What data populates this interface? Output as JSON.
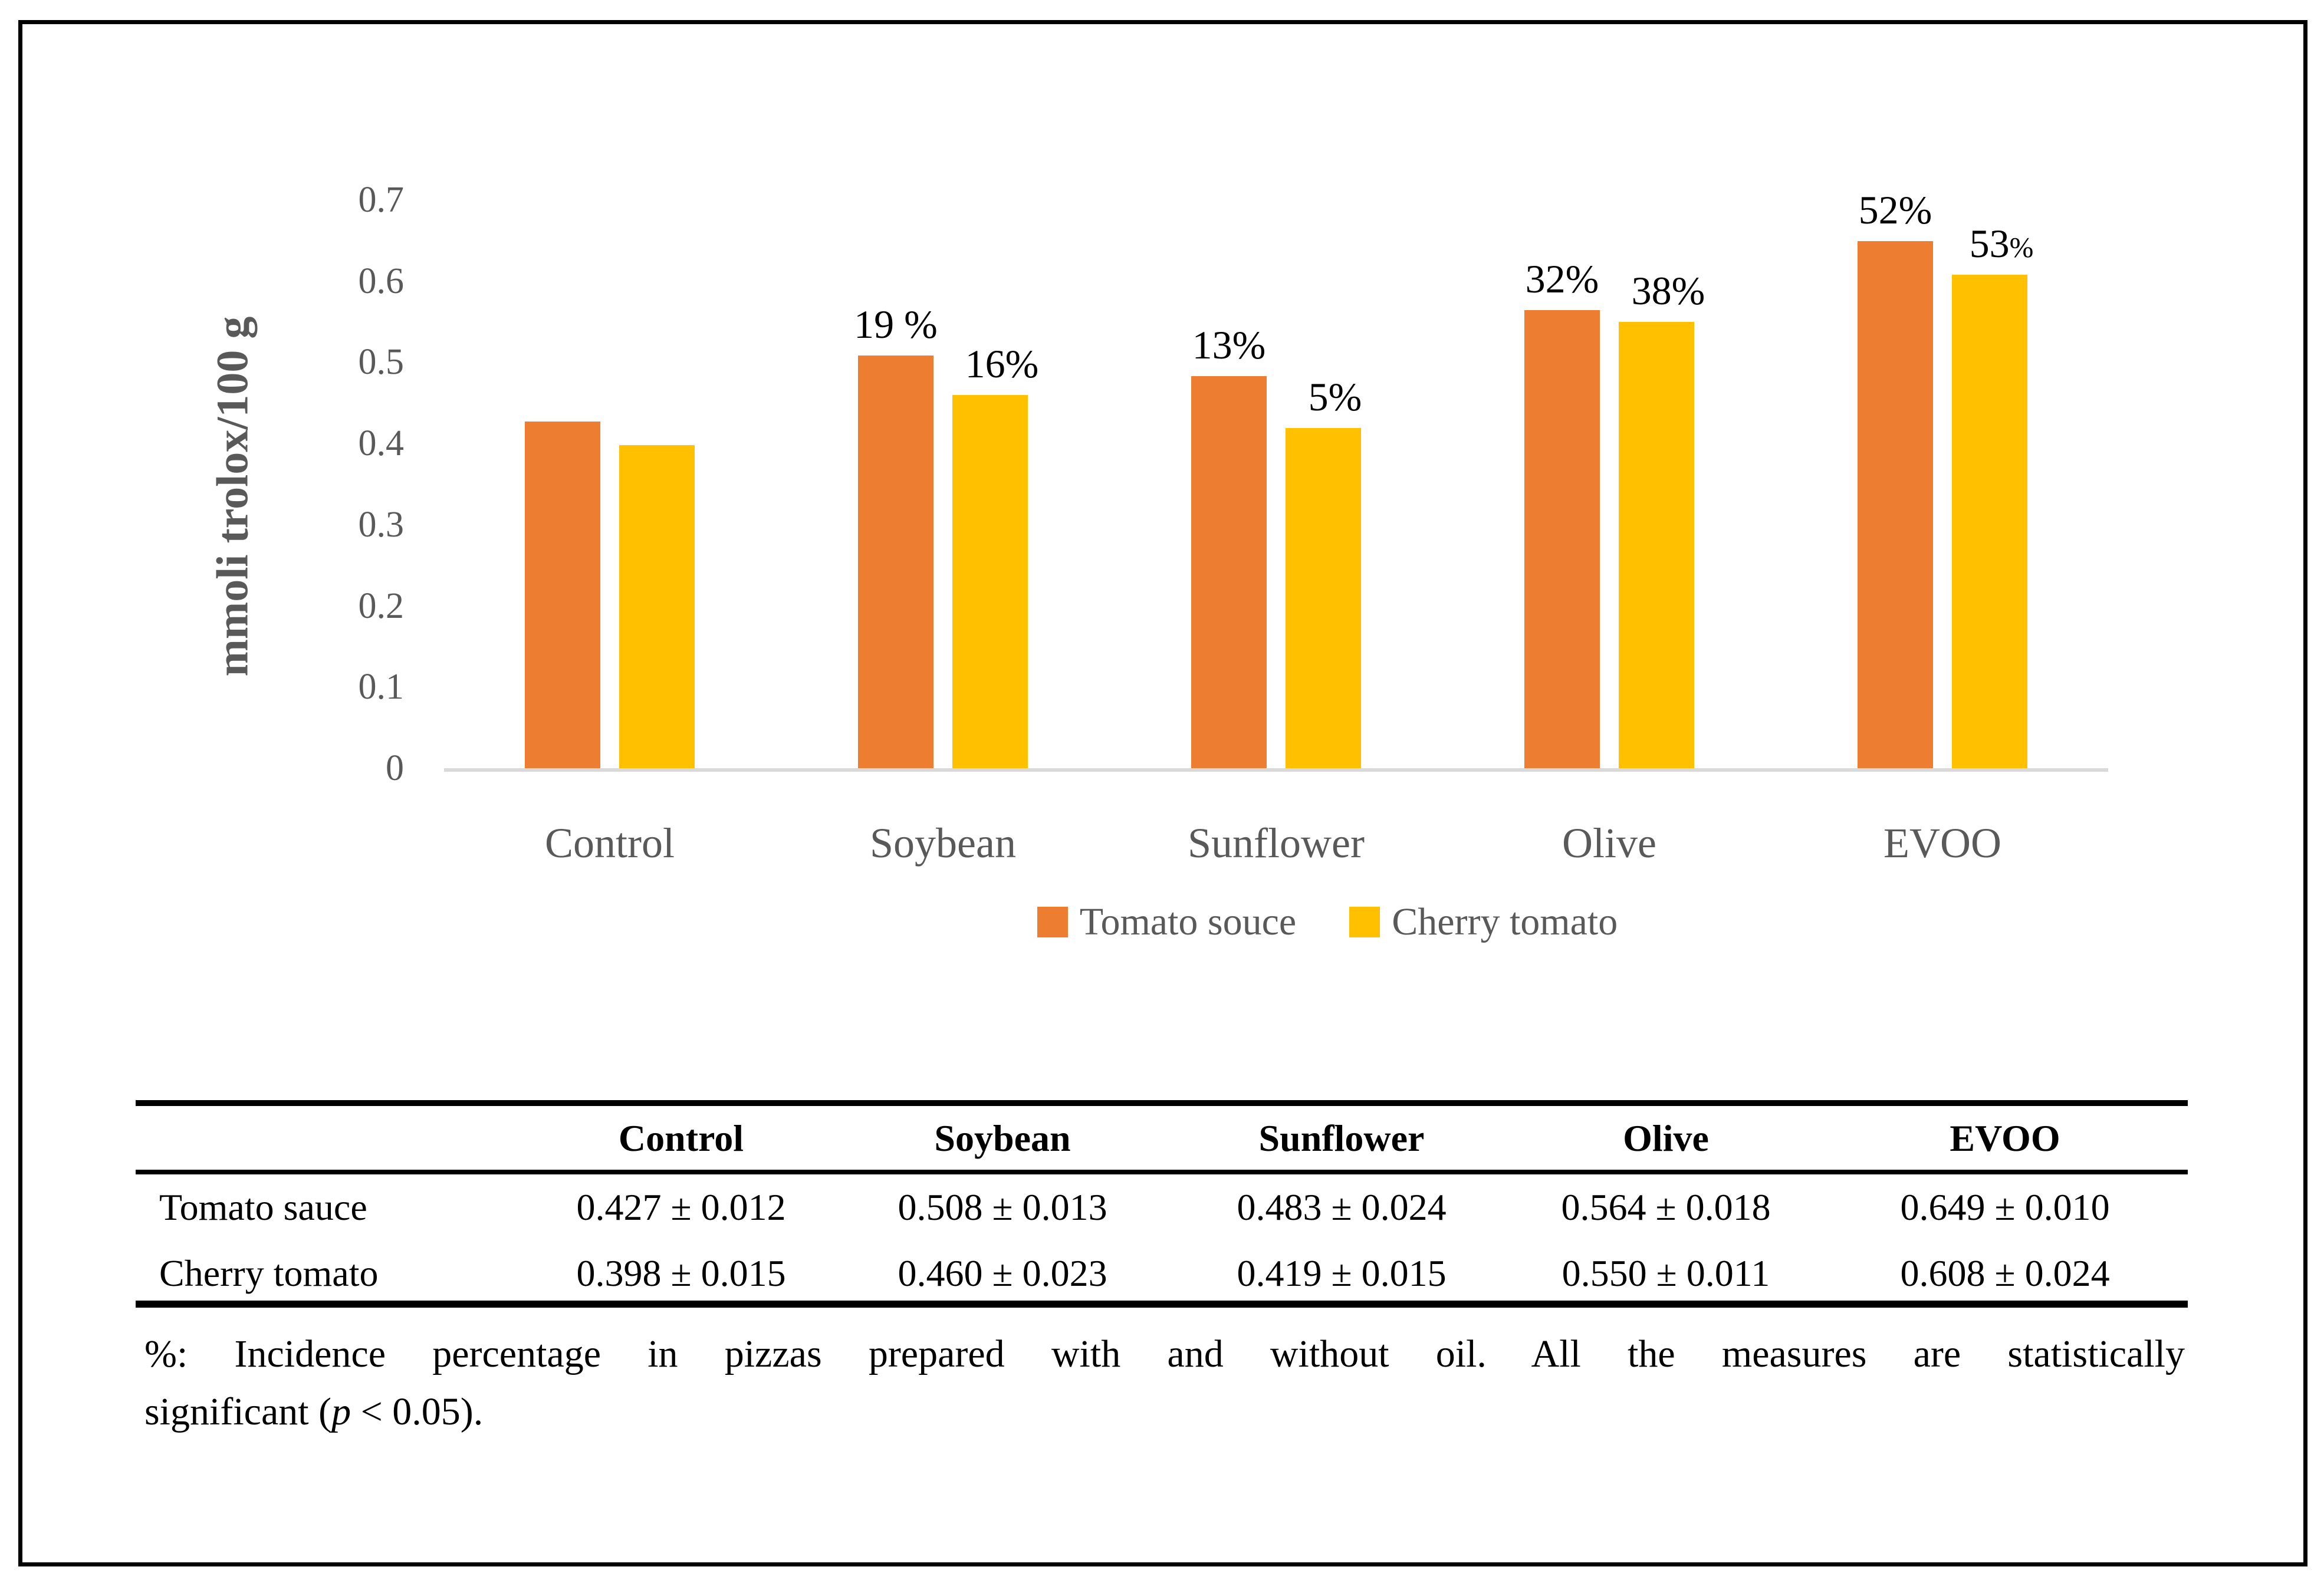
{
  "figure": {
    "kind": "grouped bar chart with summary table",
    "border_color": "#000000",
    "background": "#FFFFFF"
  },
  "chart_data": {
    "type": "bar",
    "title": "",
    "xlabel": "",
    "ylabel": "mmoli trolox/100 g",
    "categories": [
      "Control",
      "Soybean",
      "Sunflower",
      "Olive",
      "EVOO"
    ],
    "series": [
      {
        "name": "Tomato souce",
        "color": "#ED7D31",
        "values": [
          0.427,
          0.508,
          0.483,
          0.564,
          0.649
        ],
        "bar_labels": [
          "",
          "19 %",
          "13%",
          "32%",
          "52%"
        ]
      },
      {
        "name": "Cherry tomato",
        "color": "#FFC000",
        "values": [
          0.398,
          0.46,
          0.419,
          0.55,
          0.608
        ],
        "bar_labels": [
          "",
          "16%",
          "5%",
          "38%",
          "53%"
        ]
      }
    ],
    "ylim": [
      0,
      0.7
    ],
    "yticks": [
      "0",
      "0.1",
      "0.2",
      "0.3",
      "0.4",
      "0.5",
      "0.6",
      "0.7"
    ],
    "grid": false,
    "legend_position": "bottom-center",
    "axis_text_color": "#595959",
    "baseline_color": "#D9D9D9",
    "label_styles": {
      "53%": "small-pct"
    }
  },
  "table": {
    "header": [
      "",
      "Control",
      "Soybean",
      "Sunflower",
      "Olive",
      "EVOO"
    ],
    "rows": [
      {
        "label": "Tomato sauce",
        "values": [
          "0.427 ± 0.012",
          "0.508 ± 0.013",
          "0.483 ± 0.024",
          "0.564 ± 0.018",
          "0.649 ± 0.010"
        ]
      },
      {
        "label": "Cherry tomato",
        "values": [
          "0.398 ± 0.015",
          "0.460 ± 0.023",
          "0.419 ± 0.015",
          "0.550 ± 0.011",
          "0.608 ± 0.024"
        ]
      }
    ],
    "footnote": {
      "line1": "%: Incidence percentage in pizzas prepared with and without oil. All the measures are statistically",
      "line2_prefix": "significant (",
      "line2_p": "p",
      "line2_suffix": " < 0.05)."
    }
  }
}
